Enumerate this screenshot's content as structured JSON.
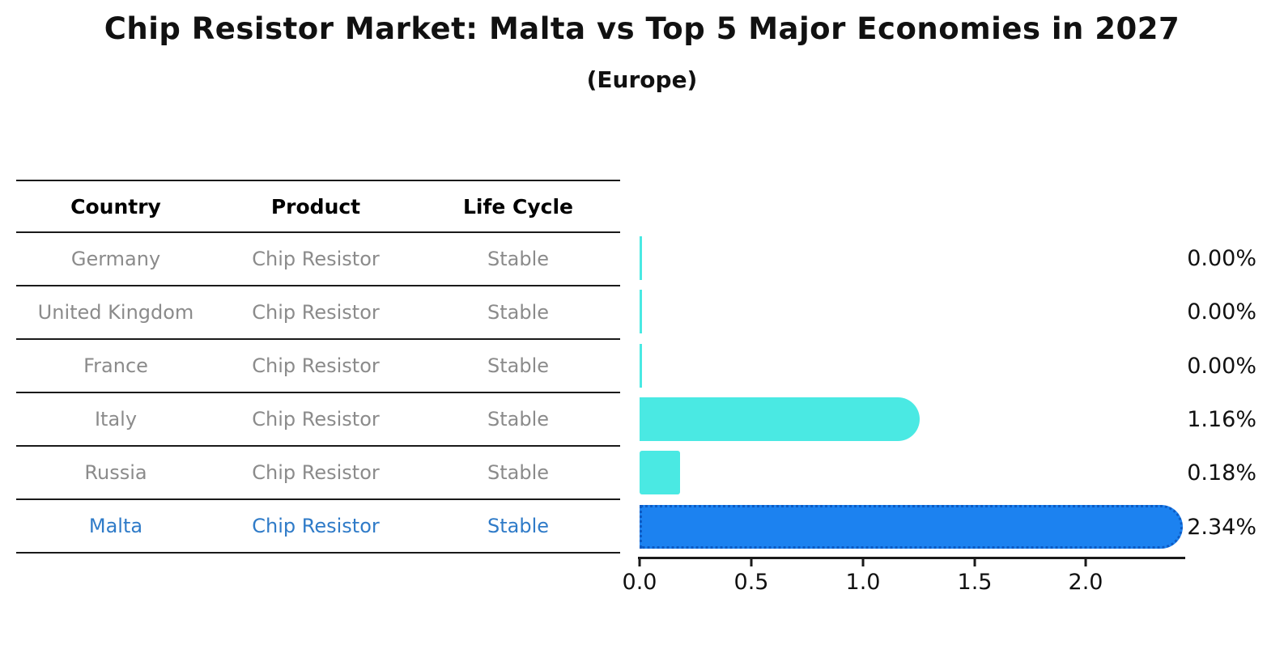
{
  "title": "Chip Resistor Market: Malta vs Top 5 Major Economies in 2027",
  "subtitle": "(Europe)",
  "table": {
    "columns": [
      "Country",
      "Product",
      "Life Cycle"
    ],
    "rows": [
      {
        "country": "Germany",
        "product": "Chip Resistor",
        "life_cycle": "Stable",
        "highlight": false
      },
      {
        "country": "United Kingdom",
        "product": "Chip Resistor",
        "life_cycle": "Stable",
        "highlight": false
      },
      {
        "country": "France",
        "product": "Chip Resistor",
        "life_cycle": "Stable",
        "highlight": false
      },
      {
        "country": "Italy",
        "product": "Chip Resistor",
        "life_cycle": "Stable",
        "highlight": false
      },
      {
        "country": "Russia",
        "product": "Chip Resistor",
        "life_cycle": "Stable",
        "highlight": false
      },
      {
        "country": "Malta",
        "product": "Chip Resistor",
        "life_cycle": "Stable",
        "highlight": true
      }
    ]
  },
  "chart_data": {
    "type": "bar",
    "orientation": "horizontal",
    "title": "Chip Resistor Market: Malta vs Top 5 Major Economies in 2027",
    "subtitle": "(Europe)",
    "categories": [
      "Germany",
      "United Kingdom",
      "France",
      "Italy",
      "Russia",
      "Malta"
    ],
    "values": [
      0.0,
      0.0,
      0.0,
      1.16,
      0.18,
      2.34
    ],
    "value_labels": [
      "0.00%",
      "0.00%",
      "0.00%",
      "1.16%",
      "0.18%",
      "2.34%"
    ],
    "xlabel": "",
    "ylabel": "",
    "xlim": [
      0,
      2.43
    ],
    "xticks": [
      0.0,
      0.5,
      1.0,
      1.5,
      2.0
    ],
    "xtick_labels": [
      "0.0",
      "0.5",
      "1.0",
      "1.5",
      "2.0"
    ],
    "grid": false,
    "legend": false,
    "bar_color": "#4ae9e3",
    "highlight_index": 5,
    "highlight_color": "#1c82f0",
    "highlight_border": "#0d5bc4",
    "highlight_text_color": "#2f7bc8"
  }
}
